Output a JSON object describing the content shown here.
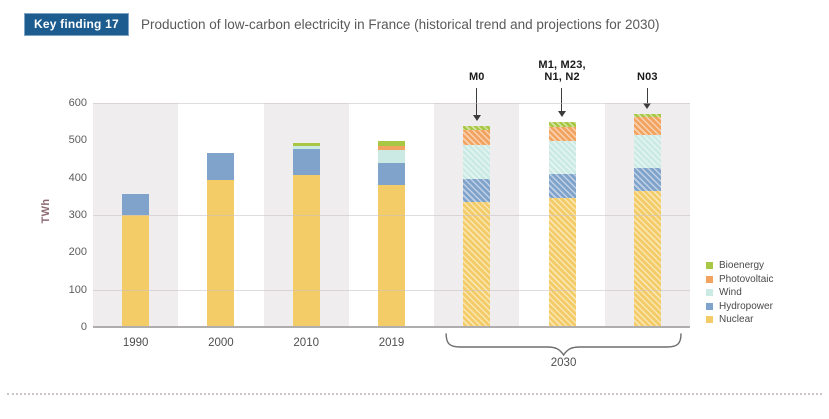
{
  "header": {
    "badge": "Key finding 17",
    "title": "Production of low-carbon electricity in France (historical trend and projections for 2030)",
    "badge_bg": "#1d5c8f",
    "badge_fg": "#ffffff"
  },
  "chart_data": {
    "type": "bar",
    "stacked": true,
    "title": "Production of low-carbon electricity in France (historical trend and projections for 2030)",
    "ylabel": "TWh",
    "xlabel": "",
    "ylim": [
      0,
      600
    ],
    "yticks": [
      0,
      100,
      200,
      300,
      400,
      500,
      600
    ],
    "gridlines_at": [
      100,
      300,
      600
    ],
    "categories": [
      "1990",
      "2000",
      "2010",
      "2019",
      "M0",
      "M1, M23, N1, N2",
      "N03"
    ],
    "x_tick_labels": [
      "1990",
      "2000",
      "2010",
      "2019"
    ],
    "hatched_from_index": 4,
    "series": [
      {
        "name": "Nuclear",
        "color": "#f3cc67",
        "values": [
          300,
          395,
          408,
          380,
          335,
          345,
          365
        ]
      },
      {
        "name": "Hydropower",
        "color": "#80a3cc",
        "values": [
          55,
          70,
          68,
          60,
          62,
          65,
          61
        ]
      },
      {
        "name": "Wind",
        "color": "#cbeae4",
        "values": [
          0,
          0,
          10,
          34,
          90,
          87,
          88
        ]
      },
      {
        "name": "Photovoltaic",
        "color": "#f2a360",
        "values": [
          0,
          0,
          0,
          12,
          41,
          40,
          48
        ]
      },
      {
        "name": "Bioenergy",
        "color": "#a8c845",
        "values": [
          0,
          0,
          6,
          11,
          10,
          11,
          8
        ]
      }
    ],
    "totals": [
      355,
      465,
      492,
      497,
      538,
      548,
      570
    ],
    "legend": [
      "Bioenergy",
      "Photovoltaic",
      "Wind",
      "Hydropower",
      "Nuclear"
    ],
    "legend_position": "right",
    "annotations": [
      {
        "text_lines": [
          "M0"
        ],
        "category_index": 4
      },
      {
        "text_lines": [
          "M1, M23,",
          "N1, N2"
        ],
        "category_index": 5
      },
      {
        "text_lines": [
          "N03"
        ],
        "category_index": 6
      }
    ],
    "group_bracket": {
      "label": "2030",
      "from_index": 4,
      "to_index": 6
    },
    "style": {
      "band_gray": "#efedee",
      "grid_color": "#c9bfc2",
      "axis_color": "#b0adad",
      "ylabel_color": "#8e6a74",
      "arrow_color": "#3c3c3c"
    }
  }
}
